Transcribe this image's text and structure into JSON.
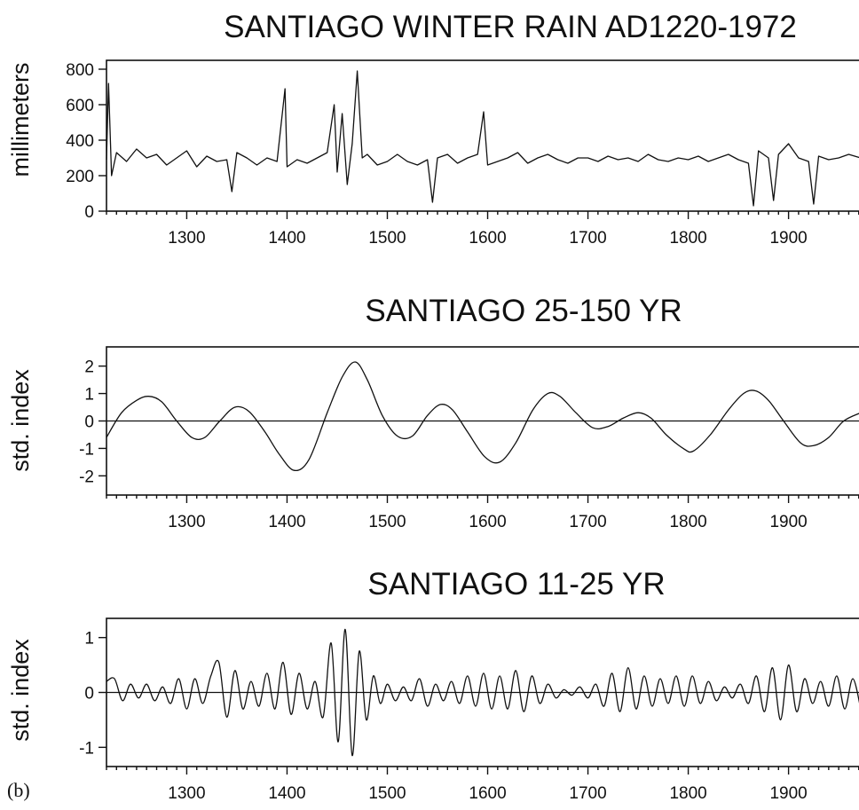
{
  "panel_label": "(b)",
  "chart_data": [
    {
      "type": "line",
      "title": "SANTIAGO WINTER RAIN AD1220-1972",
      "ylabel": "millimeters",
      "xlabel": "",
      "xlim": [
        1220,
        1972
      ],
      "ylim": [
        0,
        850
      ],
      "xticks": [
        1300,
        1400,
        1500,
        1600,
        1700,
        1800,
        1900
      ],
      "yticks": [
        0,
        200,
        400,
        600,
        800
      ],
      "grid": false,
      "series": [
        {
          "x": [
            1220,
            1222,
            1225,
            1230,
            1240,
            1250,
            1260,
            1270,
            1280,
            1290,
            1300,
            1310,
            1320,
            1330,
            1340,
            1345,
            1350,
            1360,
            1370,
            1380,
            1390,
            1398,
            1400,
            1410,
            1420,
            1430,
            1440,
            1447,
            1450,
            1455,
            1460,
            1465,
            1470,
            1475,
            1480,
            1490,
            1500,
            1510,
            1520,
            1530,
            1540,
            1545,
            1550,
            1560,
            1570,
            1580,
            1590,
            1596,
            1600,
            1610,
            1620,
            1630,
            1640,
            1650,
            1660,
            1670,
            1680,
            1690,
            1700,
            1710,
            1720,
            1730,
            1740,
            1750,
            1760,
            1770,
            1780,
            1790,
            1800,
            1810,
            1820,
            1830,
            1840,
            1850,
            1860,
            1865,
            1870,
            1880,
            1885,
            1890,
            1900,
            1910,
            1920,
            1925,
            1930,
            1940,
            1950,
            1960,
            1972
          ],
          "y": [
            290,
            720,
            200,
            330,
            280,
            350,
            300,
            320,
            260,
            300,
            340,
            250,
            310,
            280,
            290,
            110,
            330,
            300,
            260,
            300,
            280,
            690,
            250,
            290,
            270,
            300,
            330,
            600,
            220,
            550,
            150,
            380,
            790,
            300,
            320,
            260,
            280,
            320,
            280,
            260,
            290,
            50,
            300,
            320,
            270,
            300,
            320,
            560,
            260,
            280,
            300,
            330,
            270,
            300,
            320,
            290,
            270,
            300,
            300,
            280,
            310,
            290,
            300,
            280,
            320,
            290,
            280,
            300,
            290,
            310,
            280,
            300,
            320,
            290,
            270,
            30,
            340,
            300,
            60,
            320,
            380,
            300,
            280,
            40,
            310,
            290,
            300,
            320,
            300
          ]
        }
      ]
    },
    {
      "type": "line",
      "title": "SANTIAGO 25-150 YR",
      "ylabel": "std. index",
      "xlabel": "",
      "xlim": [
        1220,
        1972
      ],
      "ylim": [
        -2.7,
        2.7
      ],
      "xticks": [
        1300,
        1400,
        1500,
        1600,
        1700,
        1800,
        1900
      ],
      "yticks": [
        -2,
        -1,
        0,
        1,
        2
      ],
      "grid": false,
      "zero_line": true,
      "series": [
        {
          "x": [
            1220,
            1235,
            1250,
            1262,
            1275,
            1290,
            1305,
            1318,
            1333,
            1348,
            1362,
            1378,
            1392,
            1407,
            1422,
            1440,
            1455,
            1468,
            1480,
            1495,
            1510,
            1525,
            1540,
            1553,
            1565,
            1580,
            1597,
            1612,
            1628,
            1645,
            1660,
            1672,
            1688,
            1705,
            1720,
            1735,
            1750,
            1763,
            1778,
            1795,
            1805,
            1822,
            1840,
            1855,
            1867,
            1880,
            1895,
            1912,
            1925,
            1940,
            1955,
            1972
          ],
          "y": [
            -0.6,
            0.3,
            0.75,
            0.9,
            0.7,
            0.0,
            -0.6,
            -0.6,
            0.0,
            0.5,
            0.35,
            -0.4,
            -1.2,
            -1.8,
            -1.4,
            0.3,
            1.6,
            2.15,
            1.5,
            0.2,
            -0.55,
            -0.55,
            0.2,
            0.6,
            0.4,
            -0.4,
            -1.3,
            -1.5,
            -0.8,
            0.4,
            1.0,
            0.9,
            0.3,
            -0.25,
            -0.2,
            0.1,
            0.3,
            0.1,
            -0.5,
            -1.0,
            -1.1,
            -0.5,
            0.4,
            1.0,
            1.1,
            0.75,
            0.0,
            -0.8,
            -0.9,
            -0.6,
            0.0,
            0.3
          ]
        }
      ]
    },
    {
      "type": "line",
      "title": "SANTIAGO 11-25 YR",
      "ylabel": "std. index",
      "xlabel": "",
      "xlim": [
        1220,
        1972
      ],
      "ylim": [
        -1.35,
        1.35
      ],
      "xticks": [
        1300,
        1400,
        1500,
        1600,
        1700,
        1800,
        1900
      ],
      "yticks": [
        -1,
        0,
        1
      ],
      "grid": false,
      "zero_line": true,
      "series": [
        {
          "x": [
            1220,
            1228,
            1236,
            1244,
            1252,
            1260,
            1268,
            1276,
            1284,
            1292,
            1300,
            1308,
            1316,
            1324,
            1332,
            1340,
            1348,
            1356,
            1364,
            1372,
            1380,
            1388,
            1396,
            1404,
            1412,
            1420,
            1428,
            1436,
            1444,
            1451,
            1458,
            1465,
            1472,
            1479,
            1486,
            1493,
            1500,
            1508,
            1516,
            1524,
            1532,
            1540,
            1548,
            1556,
            1564,
            1572,
            1580,
            1588,
            1596,
            1604,
            1612,
            1620,
            1628,
            1636,
            1644,
            1652,
            1660,
            1668,
            1676,
            1684,
            1692,
            1700,
            1708,
            1716,
            1724,
            1732,
            1740,
            1748,
            1756,
            1764,
            1772,
            1780,
            1788,
            1796,
            1804,
            1812,
            1820,
            1828,
            1836,
            1844,
            1852,
            1860,
            1868,
            1876,
            1884,
            1892,
            1900,
            1908,
            1916,
            1924,
            1932,
            1940,
            1948,
            1956,
            1964,
            1972
          ],
          "y": [
            0.2,
            0.25,
            -0.15,
            0.15,
            -0.1,
            0.15,
            -0.15,
            0.1,
            -0.2,
            0.25,
            -0.3,
            0.25,
            -0.2,
            0.3,
            0.55,
            -0.45,
            0.4,
            -0.3,
            0.2,
            -0.25,
            0.35,
            -0.3,
            0.55,
            -0.4,
            0.35,
            -0.3,
            0.2,
            -0.45,
            0.9,
            -0.9,
            1.15,
            -1.15,
            0.75,
            -0.5,
            0.3,
            -0.2,
            0.15,
            -0.15,
            0.1,
            -0.15,
            0.25,
            -0.25,
            0.15,
            -0.15,
            0.2,
            -0.2,
            0.3,
            -0.25,
            0.35,
            -0.3,
            0.3,
            -0.3,
            0.4,
            -0.35,
            0.3,
            -0.2,
            0.15,
            -0.1,
            0.05,
            -0.05,
            0.1,
            -0.1,
            0.15,
            -0.25,
            0.35,
            -0.35,
            0.45,
            -0.3,
            0.3,
            -0.25,
            0.25,
            -0.2,
            0.3,
            -0.25,
            0.3,
            -0.2,
            0.2,
            -0.15,
            0.1,
            -0.1,
            0.15,
            -0.2,
            0.3,
            -0.35,
            0.45,
            -0.5,
            0.5,
            -0.35,
            0.25,
            -0.2,
            0.2,
            -0.25,
            0.3,
            -0.3,
            0.25,
            -0.3
          ]
        }
      ]
    }
  ]
}
